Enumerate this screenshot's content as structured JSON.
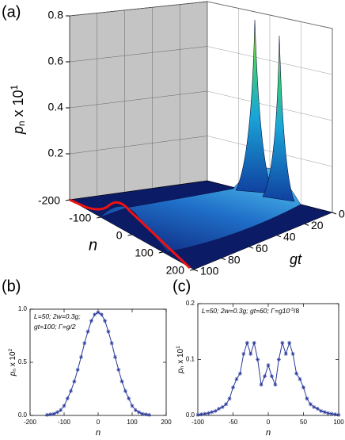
{
  "chart_data": [
    {
      "type": "surface3d",
      "panel_label": "(a)",
      "xlabel": "n",
      "ylabel": "gt",
      "zlabel": [
        {
          "text": "p"
        },
        {
          "sub": "n"
        },
        {
          "text": " x 10"
        },
        {
          "sup": "1"
        }
      ],
      "xlim": [
        -200,
        200
      ],
      "xticks": [
        -200,
        -100,
        0,
        100,
        200
      ],
      "ylim": [
        0,
        100
      ],
      "yticks": [
        0,
        20,
        40,
        60,
        80,
        100
      ],
      "zlim": [
        0,
        0.8
      ],
      "zticks": [
        0.2,
        0.4,
        0.6,
        0.8
      ]
    },
    {
      "type": "line",
      "panel_label": "(b)",
      "annotation": [
        [
          {
            "text": "L=50; 2w=0.3g;"
          }
        ],
        [
          {
            "text": "gt=100; Γ=g/2"
          }
        ]
      ],
      "xlabel": "n",
      "ylabel": [
        {
          "text": "p"
        },
        {
          "sub": "n"
        },
        {
          "text": " x 10"
        },
        {
          "sup": "2"
        }
      ],
      "x": [
        -150,
        -140,
        -130,
        -120,
        -110,
        -100,
        -90,
        -80,
        -70,
        -60,
        -50,
        -40,
        -30,
        -20,
        -10,
        0,
        10,
        20,
        30,
        40,
        50,
        60,
        70,
        80,
        90,
        100,
        110,
        120,
        130,
        140,
        150
      ],
      "series": [
        {
          "color": "#2a3a9a",
          "values": [
            0.005,
            0.01,
            0.015,
            0.03,
            0.05,
            0.09,
            0.16,
            0.23,
            0.32,
            0.43,
            0.55,
            0.68,
            0.79,
            0.89,
            0.95,
            0.97,
            0.95,
            0.89,
            0.79,
            0.68,
            0.55,
            0.43,
            0.32,
            0.23,
            0.16,
            0.09,
            0.05,
            0.03,
            0.015,
            0.01,
            0.005
          ]
        }
      ],
      "xlim": [
        -200,
        200
      ],
      "xticks": [
        -200,
        -100,
        0,
        100,
        200
      ],
      "ylim": [
        0,
        1
      ],
      "yticks": [
        {
          "value": 0,
          "label": "0.0"
        },
        {
          "value": 0.5,
          "label": "0.5"
        },
        {
          "value": 1,
          "label": "1.0"
        }
      ]
    },
    {
      "type": "line",
      "panel_label": "(c)",
      "annotation": [
        [
          {
            "text": "L=50; 2w=0.3g; gt=60; Γ=g10"
          },
          {
            "sup": "-3"
          },
          {
            "text": "/8"
          }
        ]
      ],
      "xlabel": "n",
      "ylabel": [
        {
          "text": "p"
        },
        {
          "sub": "n"
        },
        {
          "text": " x 10"
        },
        {
          "sup": "1"
        }
      ],
      "x": [
        -100,
        -95,
        -90,
        -85,
        -80,
        -75,
        -70,
        -65,
        -60,
        -55,
        -50,
        -45,
        -40,
        -35,
        -30,
        -25,
        -20,
        -15,
        -10,
        -5,
        0,
        5,
        10,
        15,
        20,
        25,
        30,
        35,
        40,
        45,
        50,
        55,
        60,
        65,
        70,
        75,
        80,
        85,
        90,
        95,
        100
      ],
      "series": [
        {
          "color": "#2a3a9a",
          "values": [
            0.001,
            0.002,
            0.003,
            0.004,
            0.006,
            0.008,
            0.012,
            0.015,
            0.02,
            0.03,
            0.05,
            0.065,
            0.075,
            0.11,
            0.13,
            0.11,
            0.13,
            0.1,
            0.055,
            0.07,
            0.09,
            0.07,
            0.055,
            0.1,
            0.13,
            0.11,
            0.13,
            0.11,
            0.075,
            0.065,
            0.05,
            0.03,
            0.02,
            0.015,
            0.012,
            0.008,
            0.006,
            0.004,
            0.003,
            0.002,
            0.001
          ]
        }
      ],
      "xlim": [
        -100,
        100
      ],
      "xticks": [
        -100,
        -50,
        0,
        50,
        100
      ],
      "ylim": [
        0,
        0.2
      ],
      "yticks": [
        {
          "value": 0,
          "label": "0.0"
        },
        {
          "value": 0.1,
          "label": "0.1"
        },
        {
          "value": 0.2,
          "label": "0.2"
        }
      ]
    }
  ]
}
